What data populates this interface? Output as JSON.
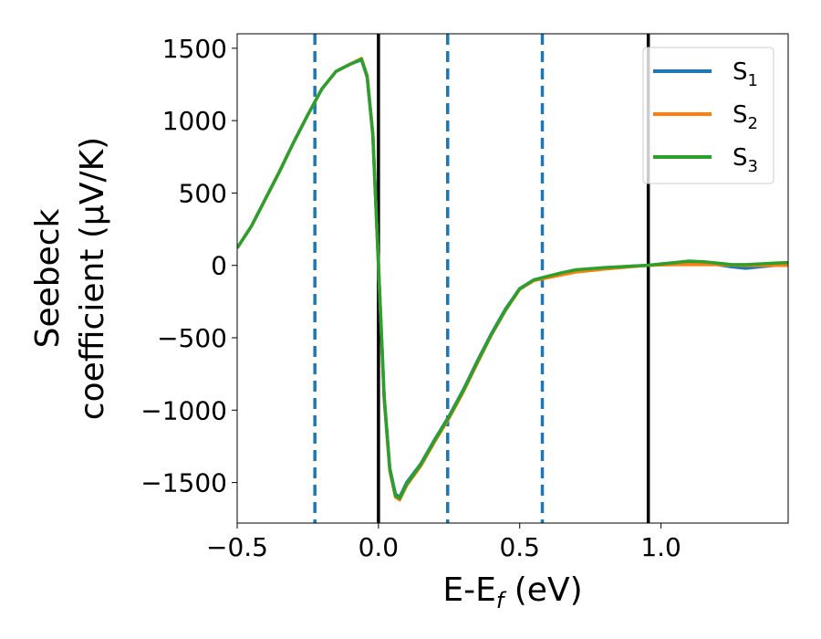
{
  "chart_data": {
    "type": "line",
    "xlabel_main": "E-E",
    "xlabel_sub": "f",
    "xlabel_unit": " (eV)",
    "ylabel_line1": "Seebeck",
    "ylabel_line2": "coefficient  (μV/K)",
    "xlim": [
      -0.5,
      1.45
    ],
    "ylim": [
      -1780,
      1600
    ],
    "x_ticks": [
      -0.5,
      0.0,
      0.5,
      1.0
    ],
    "x_tick_labels": [
      "−0.5",
      "0.0",
      "0.5",
      "1.0"
    ],
    "y_ticks": [
      1500,
      1000,
      500,
      0,
      -500,
      -1000,
      -1500
    ],
    "y_tick_labels": [
      "1500",
      "1000",
      "500",
      "0",
      "−500",
      "−1000",
      "−1500"
    ],
    "vlines_solid": [
      0.0,
      0.955
    ],
    "vlines_dashed": [
      -0.225,
      0.245,
      0.58
    ],
    "legend_position": "top-right",
    "series": [
      {
        "name": "S",
        "sub": "1",
        "color": "#1f77b4",
        "x": [
          -0.5,
          -0.45,
          -0.4,
          -0.35,
          -0.3,
          -0.25,
          -0.2,
          -0.15,
          -0.1,
          -0.06,
          -0.04,
          -0.02,
          0.0,
          0.02,
          0.04,
          0.06,
          0.075,
          0.1,
          0.15,
          0.2,
          0.25,
          0.3,
          0.35,
          0.4,
          0.45,
          0.5,
          0.55,
          0.6,
          0.65,
          0.7,
          0.8,
          0.9,
          0.95,
          1.0,
          1.05,
          1.1,
          1.15,
          1.2,
          1.25,
          1.3,
          1.35,
          1.4,
          1.45
        ],
        "y": [
          120,
          270,
          460,
          650,
          850,
          1040,
          1220,
          1340,
          1390,
          1420,
          1300,
          900,
          0,
          -900,
          -1400,
          -1580,
          -1600,
          -1500,
          -1370,
          -1200,
          -1040,
          -860,
          -660,
          -470,
          -300,
          -160,
          -100,
          -80,
          -60,
          -40,
          -20,
          -5,
          0,
          5,
          15,
          25,
          20,
          5,
          -10,
          -20,
          -10,
          0,
          10
        ]
      },
      {
        "name": "S",
        "sub": "2",
        "color": "#ff7f0e",
        "x": [
          -0.5,
          -0.45,
          -0.4,
          -0.35,
          -0.3,
          -0.25,
          -0.2,
          -0.15,
          -0.1,
          -0.06,
          -0.04,
          -0.02,
          0.0,
          0.02,
          0.04,
          0.06,
          0.075,
          0.1,
          0.15,
          0.2,
          0.25,
          0.3,
          0.35,
          0.4,
          0.45,
          0.5,
          0.55,
          0.6,
          0.65,
          0.7,
          0.8,
          0.9,
          0.95,
          1.0,
          1.05,
          1.1,
          1.15,
          1.2,
          1.25,
          1.3,
          1.35,
          1.4,
          1.45
        ],
        "y": [
          120,
          270,
          460,
          650,
          850,
          1040,
          1220,
          1340,
          1390,
          1430,
          1310,
          910,
          0,
          -920,
          -1420,
          -1600,
          -1620,
          -1520,
          -1385,
          -1215,
          -1055,
          -875,
          -675,
          -480,
          -310,
          -165,
          -105,
          -85,
          -65,
          -45,
          -25,
          -8,
          0,
          3,
          5,
          5,
          5,
          5,
          3,
          0,
          0,
          0,
          0
        ]
      },
      {
        "name": "S",
        "sub": "3",
        "color": "#2ca02c",
        "x": [
          -0.5,
          -0.45,
          -0.4,
          -0.35,
          -0.3,
          -0.25,
          -0.2,
          -0.15,
          -0.1,
          -0.06,
          -0.04,
          -0.02,
          0.0,
          0.02,
          0.04,
          0.06,
          0.075,
          0.1,
          0.15,
          0.2,
          0.25,
          0.3,
          0.35,
          0.4,
          0.45,
          0.5,
          0.55,
          0.6,
          0.65,
          0.7,
          0.8,
          0.9,
          0.95,
          1.0,
          1.05,
          1.1,
          1.15,
          1.2,
          1.25,
          1.3,
          1.35,
          1.4,
          1.45
        ],
        "y": [
          120,
          270,
          460,
          650,
          850,
          1040,
          1220,
          1340,
          1390,
          1425,
          1305,
          905,
          0,
          -910,
          -1410,
          -1590,
          -1610,
          -1510,
          -1375,
          -1205,
          -1045,
          -865,
          -665,
          -475,
          -305,
          -162,
          -100,
          -75,
          -50,
          -30,
          -15,
          -5,
          0,
          10,
          20,
          30,
          25,
          15,
          5,
          5,
          10,
          15,
          20
        ]
      }
    ]
  }
}
